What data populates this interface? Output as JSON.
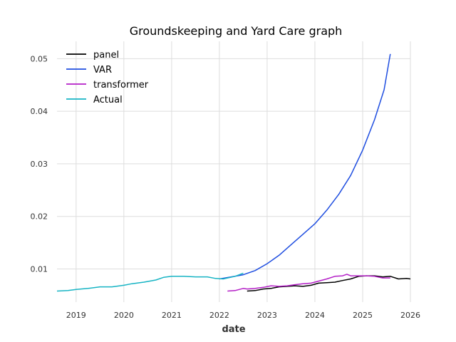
{
  "chart_data": {
    "type": "line",
    "title": "Groundskeeping and Yard Care graph",
    "xlabel": "date",
    "ylabel": "",
    "xlim": [
      2018.6,
      2026.0
    ],
    "ylim": [
      0.0037,
      0.0533
    ],
    "x_ticks": [
      {
        "value": 2019,
        "label": "2019"
      },
      {
        "value": 2020,
        "label": "2020"
      },
      {
        "value": 2021,
        "label": "2021"
      },
      {
        "value": 2022,
        "label": "2022"
      },
      {
        "value": 2023,
        "label": "2023"
      },
      {
        "value": 2024,
        "label": "2024"
      },
      {
        "value": 2025,
        "label": "2025"
      },
      {
        "value": 2026,
        "label": "2026"
      }
    ],
    "y_ticks": [
      {
        "value": 0.01,
        "label": "0.01"
      },
      {
        "value": 0.02,
        "label": "0.02"
      },
      {
        "value": 0.03,
        "label": "0.03"
      },
      {
        "value": 0.04,
        "label": "0.04"
      },
      {
        "value": 0.05,
        "label": "0.05"
      }
    ],
    "grid": true,
    "legend_position": "top-left",
    "series": [
      {
        "name": "panel",
        "color": "#000000",
        "points": [
          [
            2022.58,
            0.0058
          ],
          [
            2022.75,
            0.0059
          ],
          [
            2022.92,
            0.0062
          ],
          [
            2023.08,
            0.0063
          ],
          [
            2023.25,
            0.0066
          ],
          [
            2023.42,
            0.0067
          ],
          [
            2023.58,
            0.0068
          ],
          [
            2023.75,
            0.0067
          ],
          [
            2023.92,
            0.0069
          ],
          [
            2024.08,
            0.0073
          ],
          [
            2024.25,
            0.0074
          ],
          [
            2024.42,
            0.0075
          ],
          [
            2024.58,
            0.0078
          ],
          [
            2024.75,
            0.0081
          ],
          [
            2024.92,
            0.0086
          ],
          [
            2025.08,
            0.0087
          ],
          [
            2025.25,
            0.0087
          ],
          [
            2025.42,
            0.0085
          ],
          [
            2025.58,
            0.0086
          ],
          [
            2025.75,
            0.0081
          ],
          [
            2025.92,
            0.0082
          ],
          [
            2026.0,
            0.0081
          ]
        ]
      },
      {
        "name": "VAR",
        "color": "#1f4ee0",
        "points": [
          [
            2022.0,
            0.0081
          ],
          [
            2022.25,
            0.0085
          ],
          [
            2022.5,
            0.0089
          ],
          [
            2022.75,
            0.0097
          ],
          [
            2023.0,
            0.011
          ],
          [
            2023.25,
            0.0126
          ],
          [
            2023.5,
            0.0146
          ],
          [
            2023.75,
            0.0166
          ],
          [
            2024.0,
            0.0186
          ],
          [
            2024.25,
            0.0212
          ],
          [
            2024.5,
            0.0242
          ],
          [
            2024.75,
            0.0278
          ],
          [
            2025.0,
            0.0326
          ],
          [
            2025.25,
            0.0384
          ],
          [
            2025.45,
            0.0441
          ],
          [
            2025.58,
            0.0509
          ]
        ]
      },
      {
        "name": "transformer",
        "color": "#b41fc7",
        "points": [
          [
            2022.17,
            0.0058
          ],
          [
            2022.33,
            0.0059
          ],
          [
            2022.5,
            0.0063
          ],
          [
            2022.58,
            0.0062
          ],
          [
            2022.75,
            0.0063
          ],
          [
            2022.92,
            0.0065
          ],
          [
            2023.08,
            0.0068
          ],
          [
            2023.25,
            0.0067
          ],
          [
            2023.42,
            0.0068
          ],
          [
            2023.58,
            0.007
          ],
          [
            2023.75,
            0.0072
          ],
          [
            2023.92,
            0.0073
          ],
          [
            2024.08,
            0.0077
          ],
          [
            2024.25,
            0.0081
          ],
          [
            2024.42,
            0.0086
          ],
          [
            2024.58,
            0.0087
          ],
          [
            2024.67,
            0.009
          ],
          [
            2024.75,
            0.0087
          ],
          [
            2024.92,
            0.0087
          ],
          [
            2025.08,
            0.0087
          ],
          [
            2025.25,
            0.0086
          ],
          [
            2025.42,
            0.0083
          ],
          [
            2025.58,
            0.0083
          ]
        ]
      },
      {
        "name": "Actual",
        "color": "#17b4c4",
        "points": [
          [
            2018.6,
            0.0058
          ],
          [
            2018.83,
            0.0059
          ],
          [
            2019.0,
            0.0061
          ],
          [
            2019.25,
            0.0063
          ],
          [
            2019.5,
            0.0066
          ],
          [
            2019.75,
            0.0066
          ],
          [
            2020.0,
            0.0069
          ],
          [
            2020.17,
            0.0072
          ],
          [
            2020.42,
            0.0075
          ],
          [
            2020.67,
            0.0079
          ],
          [
            2020.83,
            0.0084
          ],
          [
            2021.0,
            0.0086
          ],
          [
            2021.25,
            0.0086
          ],
          [
            2021.5,
            0.0085
          ],
          [
            2021.75,
            0.0085
          ],
          [
            2021.92,
            0.0082
          ],
          [
            2022.08,
            0.0081
          ],
          [
            2022.33,
            0.0086
          ],
          [
            2022.5,
            0.0092
          ]
        ]
      }
    ]
  }
}
